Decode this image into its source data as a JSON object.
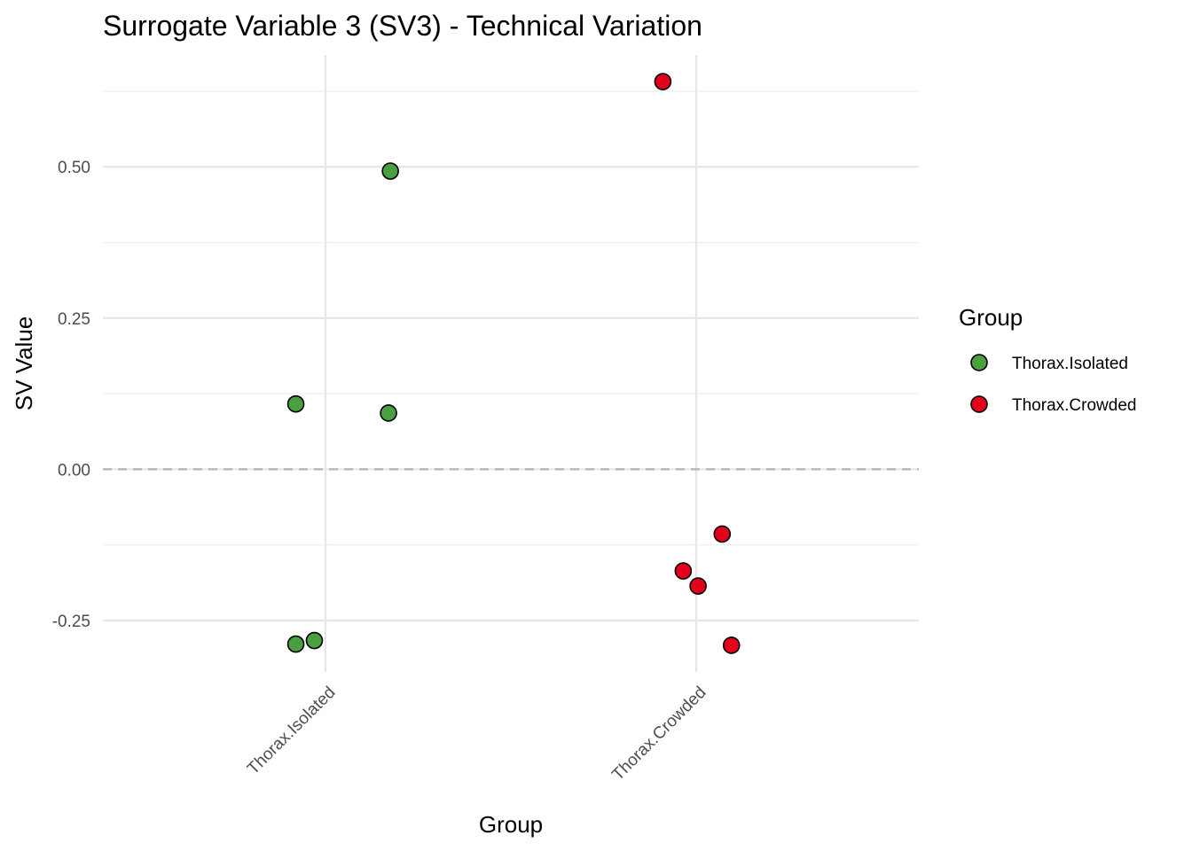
{
  "chart_data": {
    "type": "scatter",
    "title": "Surrogate Variable 3 (SV3) - Technical Variation",
    "xlabel": "Group",
    "ylabel": "SV Value",
    "categories": [
      "Thorax.Isolated",
      "Thorax.Crowded"
    ],
    "ylim": [
      -0.335,
      0.685
    ],
    "yticks": [
      -0.25,
      0.0,
      0.25,
      0.5
    ],
    "ytick_labels": [
      "-0.25",
      "0.00",
      "0.25",
      "0.50"
    ],
    "reference_line": {
      "y": 0,
      "style": "dashed"
    },
    "series": [
      {
        "name": "Thorax.Isolated",
        "color": "#4aa03f",
        "points": [
          {
            "x": 0.35,
            "y": 0.493
          },
          {
            "x": 0.34,
            "y": 0.093
          },
          {
            "x": -0.16,
            "y": 0.108
          },
          {
            "x": -0.16,
            "y": -0.289
          },
          {
            "x": -0.06,
            "y": -0.283
          }
        ]
      },
      {
        "name": "Thorax.Crowded",
        "color": "#e3001b",
        "points": [
          {
            "x": -0.18,
            "y": 0.641
          },
          {
            "x": -0.07,
            "y": -0.168
          },
          {
            "x": 0.01,
            "y": -0.193
          },
          {
            "x": 0.14,
            "y": -0.107
          },
          {
            "x": 0.19,
            "y": -0.291
          }
        ]
      }
    ],
    "legend": {
      "title": "Group",
      "position": "right"
    }
  }
}
